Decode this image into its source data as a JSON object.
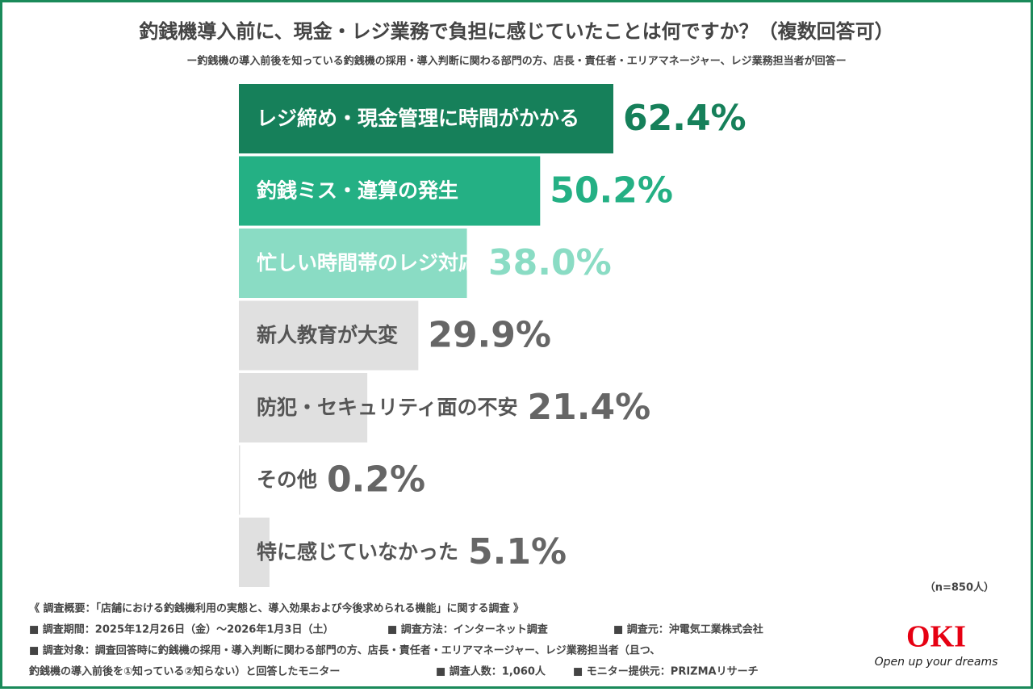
{
  "chart_data": {
    "type": "hbar",
    "title": "釣銭機導入前に、現金・レジ業務で負担に感じていたことは何ですか？（複数回答可）",
    "subtitle": "ー釣銭機の導入前後を知っている釣銭機の採用・導入判断に関わる部門の方、店長・責任者・エリアマネージャー、レジ業務担当者が回答ー",
    "categories": [
      "レジ締め・現金管理に時間がかかる",
      "釣銭ミス・違算の発生",
      "忙しい時間帯のレジ対応",
      "新人教育が大変",
      "防犯・セキュリティ面の不安",
      "その他",
      "特に感じていなかった"
    ],
    "values": [
      62.4,
      50.2,
      38.0,
      29.9,
      21.4,
      0.2,
      5.1
    ],
    "value_labels": [
      "62.4%",
      "50.2%",
      "38.0%",
      "29.9%",
      "21.4%",
      "0.2%",
      "5.1%"
    ],
    "colors": [
      "#16805a",
      "#24b084",
      "#8adcc4",
      "#e0e0e0",
      "#e0e0e0",
      "#e0e0e0",
      "#e0e0e0"
    ],
    "category_label_colors": [
      "#ffffff",
      "#ffffff",
      "#ffffff",
      "#555555",
      "#555555",
      "#555555",
      "#555555"
    ],
    "value_label_colors": [
      "#16805a",
      "#24b084",
      "#8adcc4",
      "#666666",
      "#666666",
      "#666666",
      "#666666"
    ],
    "note": "（n=850人）"
  },
  "footer": {
    "lines": [
      [
        "《 調査概要：「店舗における釣銭機利用の実態と、導入効果および今後求められる機能」に関する調査 》"
      ],
      [
        "■ 調査期間：2025年12月26日（金）～2026年1月3日（土）",
        "■ 調査方法：インターネット調査",
        "■ 調査元：沖電気工業株式会社"
      ],
      [
        "■ 調査対象：調査回答時に釣銭機の採用・導入判断に関わる部門の方、店長・責任者・エリアマネージャー、レジ業務担当者（且つ、"
      ],
      [
        "釣銭機の導入前後を①知っている②知らない）と回答したモニター",
        "■ 調査人数：1,060人",
        "■ モニター提供元：PRIZMAリサーチ"
      ]
    ]
  },
  "logo": {
    "name": "OKI",
    "slogan": "Open up your dreams"
  }
}
